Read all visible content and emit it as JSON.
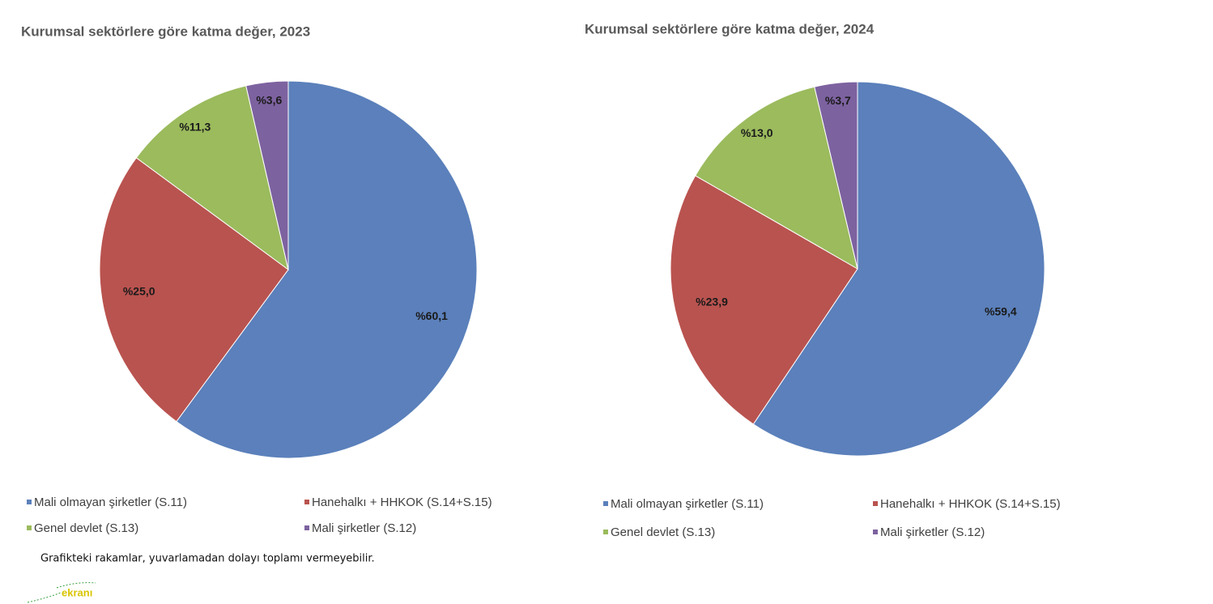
{
  "chart_data": [
    {
      "type": "pie",
      "title": "Kurumsal sektörlere göre katma değer, 2023",
      "categories": [
        "Mali olmayan şirketler (S.11)",
        "Hanehalkı + HHKOK (S.14+S.15)",
        "Genel devlet (S.13)",
        "Mali şirketler (S.12)"
      ],
      "values": [
        60.1,
        25.0,
        11.3,
        3.6
      ],
      "value_labels": [
        "%60,1",
        "%25,0",
        "%11,3",
        "%3,6"
      ],
      "colors": [
        "#5b80bb",
        "#b9534f",
        "#9bbb5d",
        "#7d62a0"
      ]
    },
    {
      "type": "pie",
      "title": "Kurumsal sektörlere göre katma değer, 2024",
      "categories": [
        "Mali olmayan şirketler (S.11)",
        "Hanehalkı + HHKOK (S.14+S.15)",
        "Genel devlet (S.13)",
        "Mali şirketler (S.12)"
      ],
      "values": [
        59.4,
        23.9,
        13.0,
        3.7
      ],
      "value_labels": [
        "%59,4",
        "%23,9",
        "%13,0",
        "%3,7"
      ],
      "colors": [
        "#5b80bb",
        "#b9534f",
        "#9bbb5d",
        "#7d62a0"
      ]
    }
  ],
  "footnote": "Grafikteki rakamlar, yuvarlamadan dolayı toplamı vermeyebilir.",
  "logo": "ekranı"
}
